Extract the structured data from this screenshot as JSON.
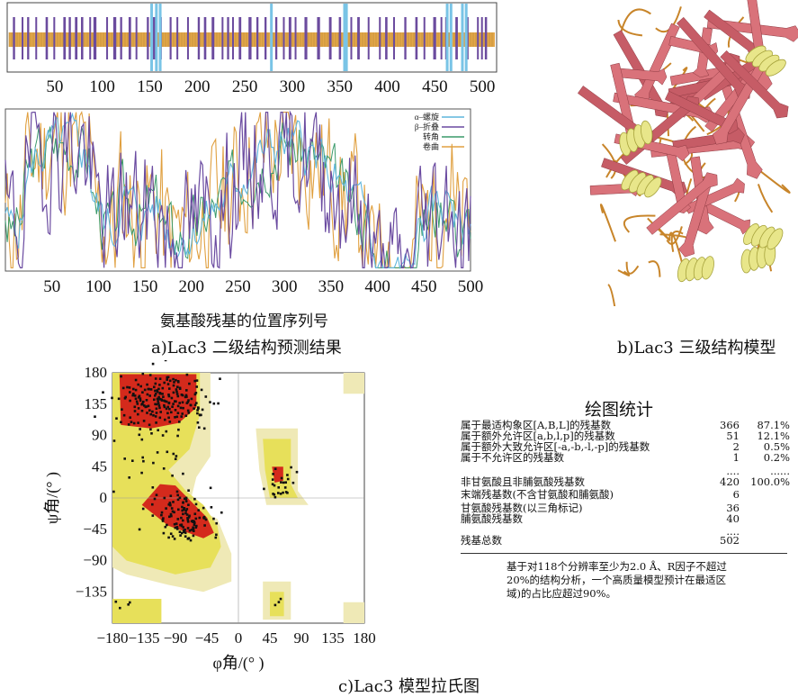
{
  "panel_a": {
    "caption": "a)Lac3 二级结构预测结果",
    "xlabel": "氨基酸残基的位置序列号",
    "ticks": [
      "50",
      "100",
      "150",
      "200",
      "250",
      "300",
      "350",
      "400",
      "450",
      "500"
    ],
    "legend": [
      "α–螺旋",
      "β–折叠",
      "转角",
      "卷曲"
    ],
    "colors": {
      "helix": "#5fb6dc",
      "sheet": "#6a4aa0",
      "turn": "#3a9a6a",
      "coil": "#e0a040"
    }
  },
  "panel_b": {
    "caption": "b)Lac3 三级结构模型"
  },
  "panel_c": {
    "caption": "c)Lac3 模型拉氏图",
    "xlabel": "φ角/(°  )",
    "ylabel": "ψ角/(°  )",
    "xticks": [
      "−180",
      "−135",
      "−90",
      "−45",
      "0",
      "45",
      "90",
      "135",
      "180"
    ],
    "yticks": [
      "180",
      "135",
      "90",
      "45",
      "0",
      "−45",
      "−90",
      "−135"
    ]
  },
  "stats": {
    "title": "绘图统计",
    "rows": [
      {
        "label": "属于最适构象区[A,B,L]的残基数",
        "count": "366",
        "pct": "87.1%"
      },
      {
        "label": "属于额外允许区[a,b,l,p]的残基数",
        "count": "51",
        "pct": "12.1%"
      },
      {
        "label": "属于额外大致允许区[-a,-b,-l,-p]的残基数",
        "count": "2",
        "pct": "0.5%"
      },
      {
        "label": "属于不允许区的残基数",
        "count": "1",
        "pct": "0.2%"
      },
      {
        "label": "",
        "count": "....",
        "pct": "......"
      },
      {
        "label": "非甘氨酸且非脯氨酸残基数",
        "count": "420",
        "pct": "100.0%"
      },
      {
        "label": "末端残基数(不含甘氨酸和脯氨酸)",
        "count": "6",
        "pct": ""
      },
      {
        "label": "甘氨酸残基数(以三角标记)",
        "count": "36",
        "pct": ""
      },
      {
        "label": "脯氨酸残基数",
        "count": "40",
        "pct": ""
      },
      {
        "label": "",
        "count": "....",
        "pct": ""
      },
      {
        "label": "残基总数",
        "count": "502",
        "pct": ""
      }
    ],
    "note": [
      "基于对118个分辨率至少为2.0 Å、R因子不超过",
      "20%的结构分析，一个高质量模型预计在最适区",
      "域)的占比应超过90%。"
    ]
  }
}
